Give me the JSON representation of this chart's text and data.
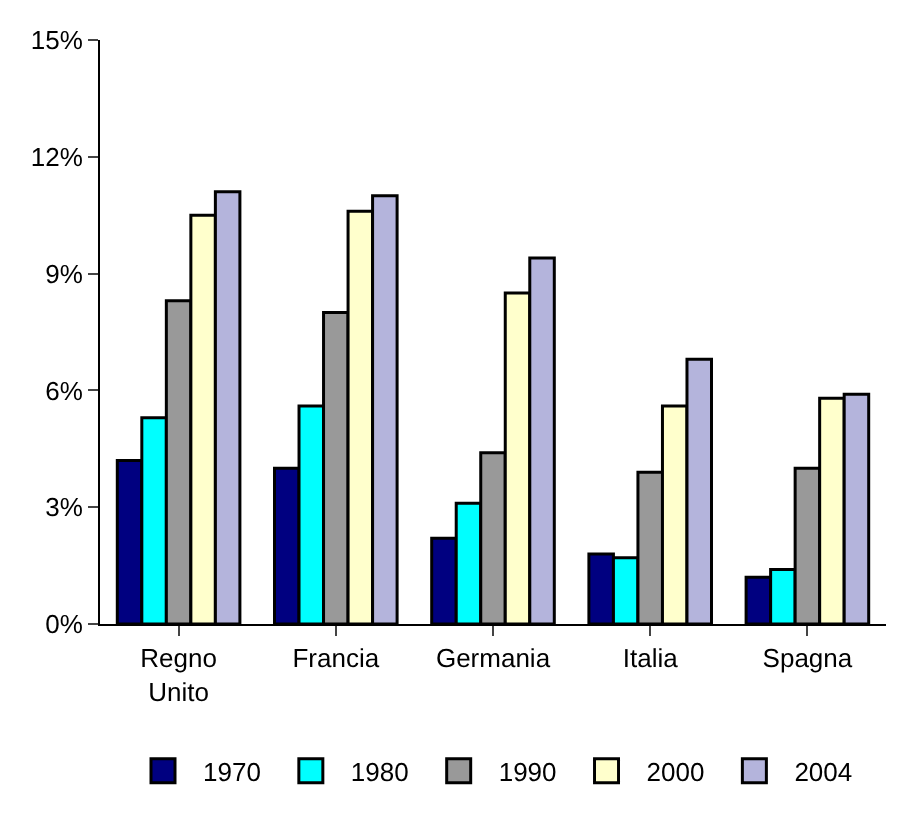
{
  "chart_data": {
    "type": "bar",
    "categories": [
      "Regno Unito",
      "Francia",
      "Germania",
      "Italia",
      "Spagna"
    ],
    "series": [
      {
        "name": "1970",
        "color": "#000080",
        "values": [
          4.2,
          4.0,
          2.2,
          1.8,
          1.2
        ]
      },
      {
        "name": "1980",
        "color": "#00ffff",
        "values": [
          5.3,
          5.6,
          3.1,
          1.7,
          1.4
        ]
      },
      {
        "name": "1990",
        "color": "#999999",
        "values": [
          8.3,
          8.0,
          4.4,
          3.9,
          4.0
        ]
      },
      {
        "name": "2000",
        "color": "#ffffcc",
        "values": [
          10.5,
          10.6,
          8.5,
          5.6,
          5.8
        ]
      },
      {
        "name": "2004",
        "color": "#b4b4dc",
        "values": [
          11.1,
          11.0,
          9.4,
          6.8,
          5.9
        ]
      }
    ],
    "ylim": [
      0,
      15
    ],
    "yticks": [
      {
        "value": 0,
        "label": "0%"
      },
      {
        "value": 3,
        "label": "3%"
      },
      {
        "value": 6,
        "label": "6%"
      },
      {
        "value": 9,
        "label": "9%"
      },
      {
        "value": 12,
        "label": "12%"
      },
      {
        "value": 15,
        "label": "15%"
      }
    ],
    "grid": false,
    "legend": "bottom"
  }
}
